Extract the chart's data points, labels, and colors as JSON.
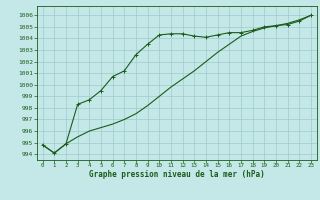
{
  "title": "Graphe pression niveau de la mer (hPa)",
  "background_color": "#c4e8e8",
  "grid_color": "#a0cccc",
  "line_color": "#1a5c1a",
  "xlim": [
    -0.5,
    23.5
  ],
  "ylim": [
    993.5,
    1006.8
  ],
  "yticks": [
    994,
    995,
    996,
    997,
    998,
    999,
    1000,
    1001,
    1002,
    1003,
    1004,
    1005,
    1006
  ],
  "xticks": [
    0,
    1,
    2,
    3,
    4,
    5,
    6,
    7,
    8,
    9,
    10,
    11,
    12,
    13,
    14,
    15,
    16,
    17,
    18,
    19,
    20,
    21,
    22,
    23
  ],
  "series1_x": [
    0,
    1,
    2,
    3,
    4,
    5,
    6,
    7,
    8,
    9,
    10,
    11,
    12,
    13,
    14,
    15,
    16,
    17,
    18,
    19,
    20,
    21,
    22,
    23
  ],
  "series1_y": [
    994.8,
    994.1,
    994.9,
    995.5,
    996.0,
    996.3,
    996.6,
    997.0,
    997.5,
    998.2,
    999.0,
    999.8,
    1000.5,
    1001.2,
    1002.0,
    1002.8,
    1003.5,
    1004.2,
    1004.6,
    1004.9,
    1005.1,
    1005.3,
    1005.6,
    1006.0
  ],
  "series2_x": [
    0,
    1,
    2,
    3,
    4,
    5,
    6,
    7,
    8,
    9,
    10,
    11,
    12,
    13,
    14,
    15,
    16,
    17,
    18,
    19,
    20,
    21,
    22,
    23
  ],
  "series2_y": [
    994.8,
    994.1,
    994.9,
    998.3,
    998.7,
    999.5,
    1000.7,
    1001.2,
    1002.6,
    1003.5,
    1004.3,
    1004.4,
    1004.4,
    1004.2,
    1004.1,
    1004.3,
    1004.5,
    1004.5,
    1004.7,
    1005.0,
    1005.1,
    1005.2,
    1005.5,
    1006.0
  ]
}
